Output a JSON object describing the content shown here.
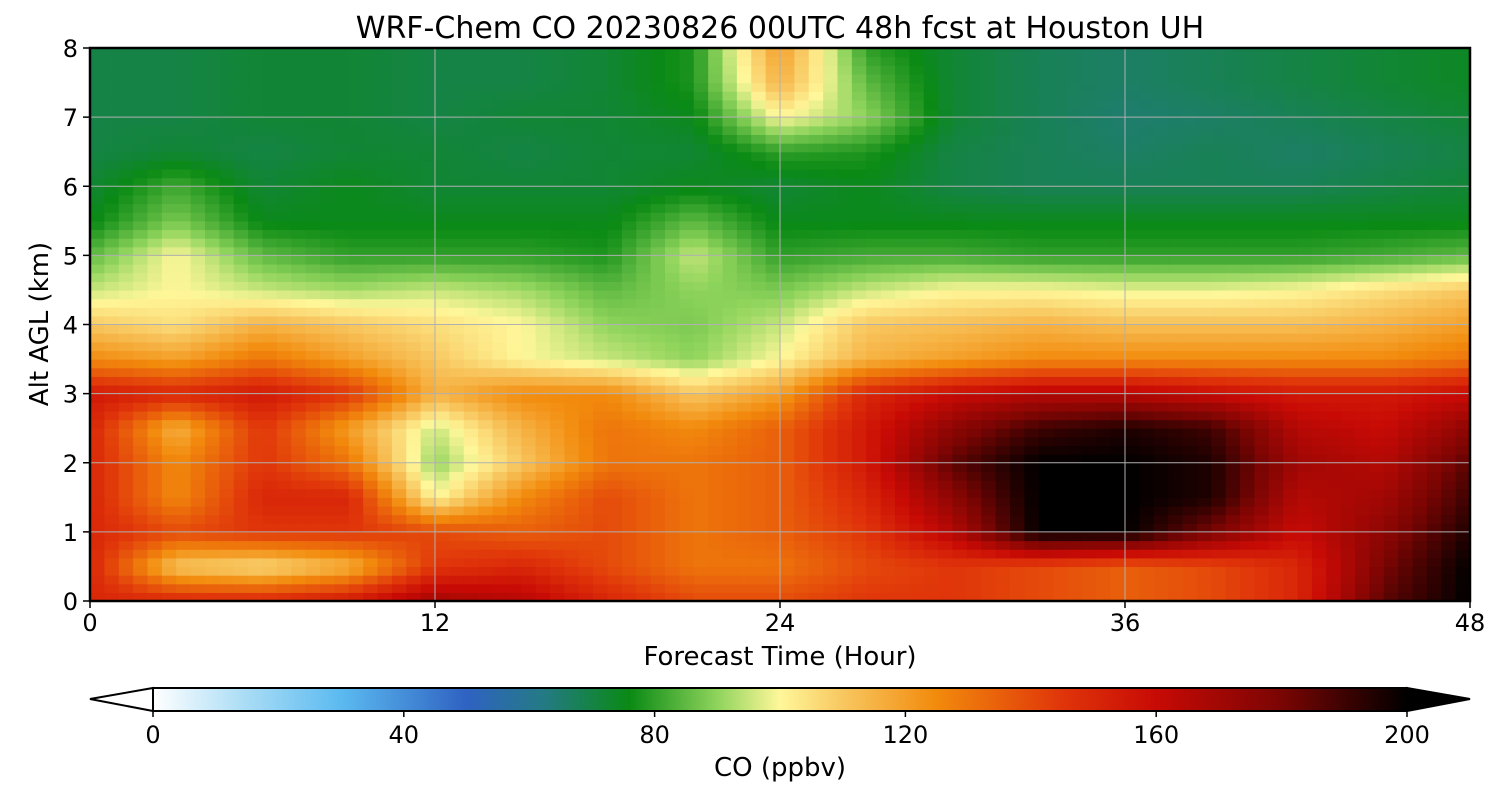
{
  "chart_data": {
    "type": "heatmap",
    "title": "WRF-Chem CO  20230826 00UTC 48h fcst at Houston UH",
    "xlabel": "Forecast Time (Hour)",
    "ylabel": "Alt AGL (km)",
    "xlim": [
      0,
      48
    ],
    "ylim": [
      0,
      8
    ],
    "x_ticks": [
      "0",
      "12",
      "24",
      "36",
      "48"
    ],
    "y_ticks": [
      "0",
      "1",
      "2",
      "3",
      "4",
      "5",
      "6",
      "7",
      "8"
    ],
    "grid": true,
    "x": [
      0,
      3,
      6,
      9,
      12,
      15,
      18,
      21,
      24,
      27,
      30,
      33,
      36,
      39,
      42,
      45,
      48
    ],
    "y": [
      0,
      0.5,
      1,
      1.5,
      2,
      2.5,
      3,
      3.5,
      4,
      4.5,
      5,
      5.5,
      6,
      6.5,
      7,
      7.5,
      8
    ],
    "z_units": "ppbv",
    "z": [
      [
        150,
        150,
        150,
        155,
        170,
        165,
        150,
        140,
        140,
        145,
        145,
        140,
        135,
        140,
        150,
        185,
        200
      ],
      [
        150,
        110,
        105,
        115,
        145,
        150,
        140,
        130,
        130,
        140,
        145,
        140,
        135,
        140,
        150,
        180,
        200
      ],
      [
        150,
        140,
        145,
        145,
        140,
        135,
        140,
        130,
        135,
        145,
        165,
        200,
        200,
        180,
        160,
        175,
        195
      ],
      [
        150,
        125,
        150,
        150,
        100,
        125,
        140,
        130,
        135,
        150,
        175,
        200,
        200,
        195,
        165,
        170,
        190
      ],
      [
        150,
        125,
        145,
        130,
        90,
        110,
        130,
        130,
        135,
        155,
        185,
        200,
        200,
        195,
        170,
        165,
        185
      ],
      [
        150,
        115,
        145,
        120,
        95,
        115,
        130,
        125,
        135,
        155,
        175,
        190,
        195,
        190,
        165,
        160,
        175
      ],
      [
        155,
        150,
        155,
        145,
        115,
        125,
        125,
        110,
        120,
        150,
        160,
        165,
        165,
        160,
        155,
        155,
        160
      ],
      [
        125,
        120,
        130,
        120,
        110,
        100,
        95,
        90,
        100,
        115,
        120,
        125,
        125,
        125,
        125,
        125,
        130
      ],
      [
        110,
        105,
        115,
        110,
        105,
        100,
        90,
        88,
        95,
        110,
        112,
        115,
        112,
        112,
        112,
        115,
        120
      ],
      [
        95,
        100,
        95,
        92,
        95,
        92,
        85,
        90,
        88,
        95,
        100,
        100,
        98,
        98,
        100,
        105,
        110
      ],
      [
        85,
        100,
        85,
        80,
        80,
        80,
        78,
        95,
        80,
        82,
        82,
        80,
        80,
        80,
        80,
        82,
        85
      ],
      [
        75,
        88,
        75,
        75,
        75,
        75,
        75,
        85,
        75,
        75,
        75,
        75,
        75,
        75,
        75,
        75,
        75
      ],
      [
        72,
        82,
        72,
        75,
        72,
        72,
        72,
        75,
        72,
        75,
        70,
        68,
        68,
        68,
        68,
        70,
        72
      ],
      [
        70,
        72,
        70,
        72,
        72,
        70,
        72,
        72,
        80,
        78,
        70,
        68,
        66,
        68,
        66,
        68,
        70
      ],
      [
        70,
        70,
        72,
        72,
        70,
        72,
        72,
        75,
        100,
        90,
        72,
        68,
        65,
        66,
        68,
        70,
        72
      ],
      [
        70,
        70,
        72,
        72,
        70,
        70,
        72,
        78,
        115,
        85,
        72,
        68,
        66,
        68,
        70,
        72,
        74
      ],
      [
        70,
        70,
        72,
        72,
        70,
        70,
        72,
        78,
        120,
        80,
        72,
        68,
        66,
        68,
        70,
        72,
        74
      ]
    ]
  },
  "colorbar": {
    "label": "CO  (ppbv)",
    "vmin": 0,
    "vmax": 200,
    "ticks": [
      "0",
      "40",
      "80",
      "120",
      "160",
      "200"
    ],
    "extend": "both",
    "stops": [
      {
        "v": 0,
        "c": "#ffffff"
      },
      {
        "v": 15,
        "c": "#a8dcf5"
      },
      {
        "v": 30,
        "c": "#5bbaf0"
      },
      {
        "v": 50,
        "c": "#2f62c2"
      },
      {
        "v": 62,
        "c": "#247a86"
      },
      {
        "v": 76,
        "c": "#0a8a14"
      },
      {
        "v": 90,
        "c": "#8fd45c"
      },
      {
        "v": 100,
        "c": "#fff79a"
      },
      {
        "v": 110,
        "c": "#f8c760"
      },
      {
        "v": 125,
        "c": "#f28a0c"
      },
      {
        "v": 145,
        "c": "#e0350a"
      },
      {
        "v": 160,
        "c": "#c80a05"
      },
      {
        "v": 180,
        "c": "#7a0503"
      },
      {
        "v": 200,
        "c": "#000000"
      }
    ]
  }
}
